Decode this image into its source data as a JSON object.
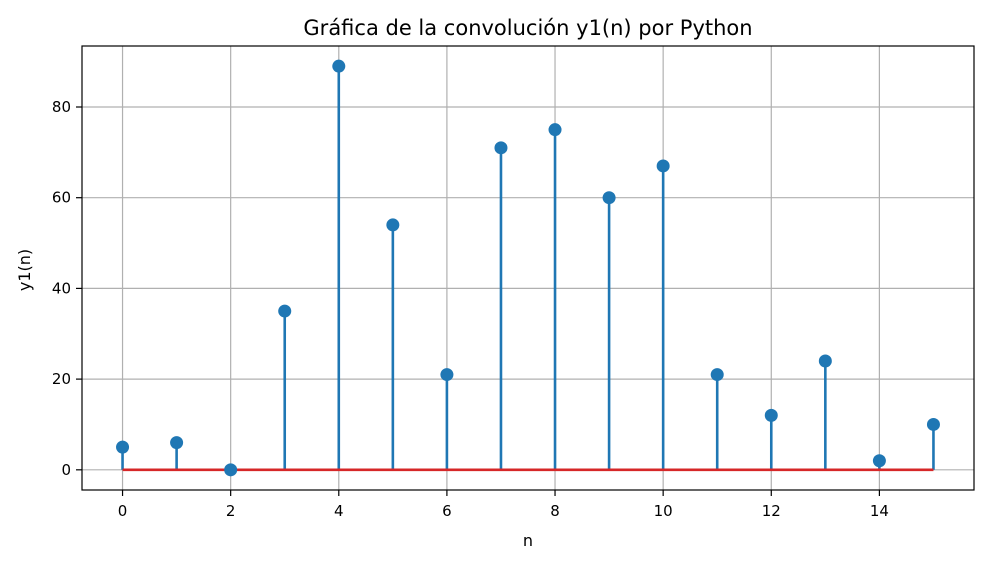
{
  "chart_data": {
    "type": "stem",
    "title": "Gráfica de la convolución y1(n) por Python",
    "xlabel": "n",
    "ylabel": "y1(n)",
    "x": [
      0,
      1,
      2,
      3,
      4,
      5,
      6,
      7,
      8,
      9,
      10,
      11,
      12,
      13,
      14,
      15
    ],
    "values": [
      5,
      6,
      0,
      35,
      89,
      54,
      21,
      71,
      75,
      60,
      67,
      21,
      12,
      24,
      2,
      10
    ],
    "xlim": [
      -0.75,
      15.75
    ],
    "ylim": [
      -4.45,
      93.45
    ],
    "xticks": [
      0,
      2,
      4,
      6,
      8,
      10,
      12,
      14
    ],
    "yticks": [
      0,
      20,
      40,
      60,
      80
    ],
    "grid": true,
    "colors": {
      "stem": "#1f77b4",
      "marker": "#1f77b4",
      "baseline": "#d62728",
      "grid": "#b0b0b0"
    }
  }
}
